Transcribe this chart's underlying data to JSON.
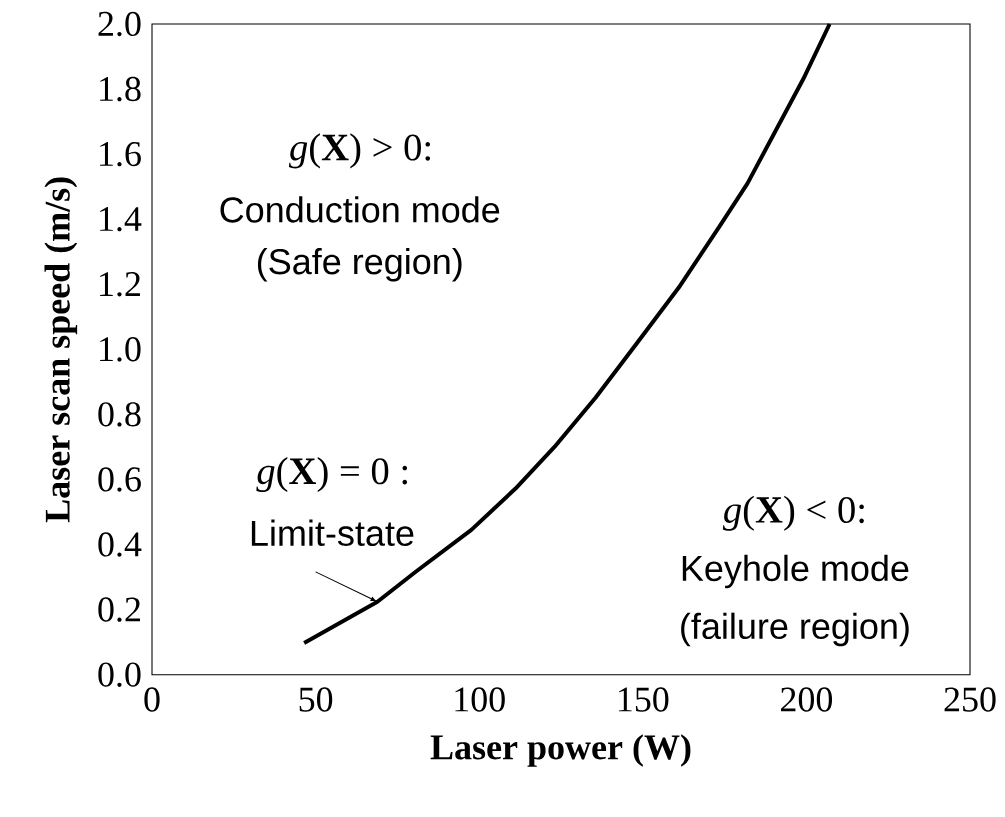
{
  "chart_data": {
    "type": "line",
    "xlabel": "Laser power (W)",
    "ylabel": "Laser scan speed (m/s)",
    "x": [
      46.5,
      68.9,
      80.7,
      97.6,
      111.1,
      123,
      135.6,
      148.3,
      161,
      173.6,
      182,
      190.5,
      199,
      207.1
    ],
    "series": [
      {
        "color": "#000000",
        "values": [
          0.097,
          0.224,
          0.317,
          0.445,
          0.572,
          0.7,
          0.852,
          1.02,
          1.19,
          1.38,
          1.51,
          1.67,
          1.83,
          2.0
        ]
      }
    ],
    "xlim": [
      0,
      250
    ],
    "ylim": [
      0,
      2.0
    ],
    "xticks": [
      0,
      50,
      100,
      150,
      200,
      250
    ],
    "yticks": [
      {
        "value": 0,
        "label": "0.0"
      },
      {
        "value": 0.2,
        "label": "0.2"
      },
      {
        "value": 0.4,
        "label": "0.4"
      },
      {
        "value": 0.6,
        "label": "0.6"
      },
      {
        "value": 0.8,
        "label": "0.8"
      },
      {
        "value": 1.0,
        "label": "1.0"
      },
      {
        "value": 1.2,
        "label": "1.2"
      },
      {
        "value": 1.4,
        "label": "1.4"
      },
      {
        "value": 1.6,
        "label": "1.6"
      },
      {
        "value": 1.8,
        "label": "1.8"
      },
      {
        "value": 2.0,
        "label": "2.0"
      }
    ],
    "annotations": [
      "*g*(**X**) > 0:",
      "Conduction mode",
      "(Safe region)",
      "*g*(**X**) = 0 :",
      {
        "text": "Limit-state",
        "x": 68.9,
        "y": 0.224
      },
      "*g*(**X**) < 0:",
      "Keyhole mode",
      "(failure region)"
    ]
  }
}
